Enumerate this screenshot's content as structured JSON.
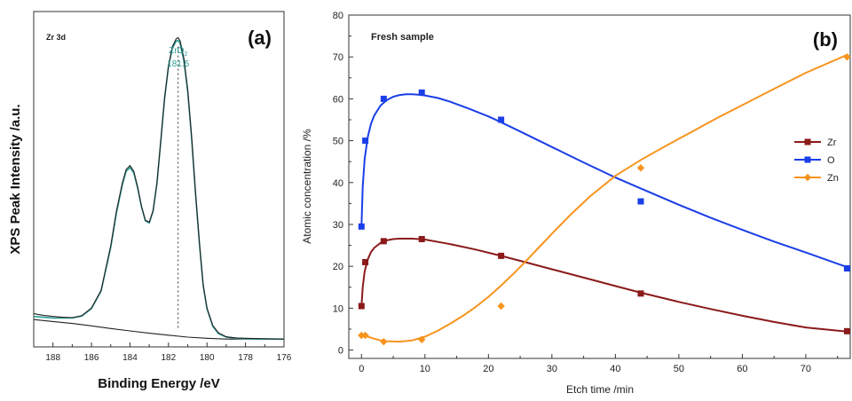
{
  "chart_data": [
    {
      "type": "line",
      "panel_label": "(a)",
      "title": "Zr 3d",
      "xlabel": "Binding Energy /eV",
      "ylabel": "XPS Peak Intensity /a.u.",
      "xlim": [
        189,
        176
      ],
      "x_reversed": true,
      "x_ticks": [
        188,
        186,
        184,
        182,
        180,
        178,
        176
      ],
      "y_ticks_shown": false,
      "annotation": {
        "species_main": "ZrO",
        "species_sub": "2",
        "value": "181.5",
        "x": 181.5,
        "color": "#2a9d94"
      },
      "series": [
        {
          "role": "measured",
          "color": "#222222",
          "x": [
            189,
            188.5,
            188,
            187.5,
            187,
            186.5,
            186,
            185.5,
            185,
            184.7,
            184.4,
            184.2,
            184,
            183.8,
            183.6,
            183.4,
            183.2,
            183,
            182.8,
            182.6,
            182.4,
            182.2,
            182,
            181.8,
            181.6,
            181.5,
            181.4,
            181.2,
            181,
            180.8,
            180.6,
            180.4,
            180.2,
            180,
            179.7,
            179.4,
            179,
            178.5,
            178,
            177,
            176
          ],
          "y": [
            8.5,
            8.1,
            7.8,
            7.6,
            7.5,
            8.0,
            10.0,
            14.5,
            26,
            35,
            42,
            45.5,
            46.5,
            45,
            41,
            36,
            32.5,
            32,
            35,
            42,
            53,
            64,
            72,
            77,
            79,
            79.3,
            78.5,
            74,
            66,
            54,
            40,
            27,
            16,
            10,
            5.5,
            3.6,
            2.6,
            2.3,
            2.2,
            2.1,
            2.0
          ]
        },
        {
          "role": "fit",
          "color": "#2a9d94",
          "x": [
            189,
            188.5,
            188,
            187.5,
            187,
            186.5,
            186,
            185.5,
            185,
            184.7,
            184.4,
            184.2,
            184,
            183.8,
            183.6,
            183.4,
            183.2,
            183,
            182.8,
            182.6,
            182.4,
            182.2,
            182,
            181.8,
            181.6,
            181.5,
            181.4,
            181.2,
            181,
            180.8,
            180.6,
            180.4,
            180.2,
            180,
            179.7,
            179.4,
            179,
            178.5,
            178,
            177,
            176
          ],
          "y": [
            7.8,
            7.6,
            7.4,
            7.4,
            7.4,
            7.9,
            9.8,
            14.3,
            25.5,
            34.5,
            41.5,
            45,
            46,
            44.6,
            40.7,
            35.8,
            32.3,
            31.8,
            34.8,
            41.8,
            52.8,
            63.8,
            71.8,
            76.6,
            78.4,
            78.6,
            77.8,
            73.4,
            65.5,
            53.5,
            39.6,
            26.7,
            15.8,
            9.8,
            5.3,
            3.4,
            2.5,
            2.2,
            2.1,
            2.0,
            2.0
          ]
        },
        {
          "role": "background",
          "color": "#222222",
          "x": [
            189,
            188,
            187,
            186,
            185,
            184,
            183,
            182,
            181,
            180,
            179,
            178,
            177,
            176
          ],
          "y": [
            7.0,
            6.5,
            6.0,
            5.4,
            4.7,
            4.1,
            3.5,
            3.0,
            2.5,
            2.2,
            2.0,
            2.0,
            2.0,
            2.0
          ]
        }
      ]
    },
    {
      "type": "line",
      "panel_label": "(b)",
      "title": "Fresh sample",
      "xlabel": "Etch time /min",
      "ylabel": "Atomic concentration /%",
      "xlim": [
        -2,
        77
      ],
      "ylim": [
        -2,
        80
      ],
      "x_ticks": [
        0,
        10,
        20,
        30,
        40,
        50,
        60,
        70
      ],
      "y_ticks": [
        0,
        10,
        20,
        30,
        40,
        50,
        60,
        70,
        80
      ],
      "legend_position": "right",
      "series": [
        {
          "name": "Zr",
          "color": "#8b1a1a",
          "marker": "square",
          "points": {
            "x": [
              0,
              0.6,
              3.5,
              9.5,
              22,
              44,
              76.5
            ],
            "y": [
              10.5,
              21,
              26,
              26.5,
              22.5,
              13.5,
              4.5
            ]
          },
          "fit": {
            "x": [
              0,
              0.2,
              0.5,
              1,
              1.5,
              2,
              3,
              4,
              5,
              6,
              8,
              10,
              14,
              18,
              22,
              26,
              30,
              35,
              40,
              44,
              50,
              55,
              60,
              65,
              70,
              76.5
            ],
            "y": [
              10.5,
              15,
              18.8,
              21.7,
              23.4,
              24.4,
              25.6,
              26.2,
              26.5,
              26.6,
              26.6,
              26.4,
              25.3,
              24,
              22.5,
              20.9,
              19.3,
              17.3,
              15.3,
              13.7,
              11.5,
              9.8,
              8.2,
              6.7,
              5.4,
              4.4
            ]
          }
        },
        {
          "name": "O",
          "color": "#1a3ee8",
          "marker": "square",
          "points": {
            "x": [
              0,
              0.6,
              3.5,
              9.5,
              22,
              44,
              76.5
            ],
            "y": [
              29.5,
              50,
              60,
              61.5,
              55,
              35.5,
              19.5
            ]
          },
          "fit": {
            "x": [
              0,
              0.2,
              0.5,
              1,
              1.5,
              2,
              3,
              4,
              5,
              6,
              7,
              8,
              9,
              10,
              12,
              14,
              17,
              20,
              22,
              25,
              30,
              35,
              40,
              44,
              50,
              55,
              60,
              65,
              70,
              76.5
            ],
            "y": [
              29.5,
              39,
              45.7,
              51,
              54,
              56,
              58.4,
              59.7,
              60.5,
              60.9,
              61.1,
              61.1,
              61,
              60.8,
              60.2,
              59.3,
              57.6,
              55.8,
              54.4,
              52.2,
              48.5,
              44.8,
              41.2,
              38.6,
              34.7,
              31.6,
              28.7,
              25.9,
              23.3,
              19.8
            ]
          }
        },
        {
          "name": "Zn",
          "color": "#f7941d",
          "marker": "diamond",
          "points": {
            "x": [
              0,
              0.6,
              3.5,
              9.5,
              22,
              44,
              76.5
            ],
            "y": [
              3.5,
              3.5,
              2,
              2.5,
              10.5,
              43.5,
              70
            ]
          },
          "fit": {
            "x": [
              0,
              1,
              2,
              3,
              4,
              6,
              8,
              10,
              12,
              14,
              16,
              18,
              20,
              22,
              24,
              26,
              28,
              30,
              33,
              36,
              40,
              44,
              48,
              52,
              56,
              60,
              65,
              70,
              76.5
            ],
            "y": [
              3.6,
              3.2,
              2.7,
              2.3,
              2.1,
              2.0,
              2.3,
              3.2,
              4.6,
              6.3,
              8.2,
              10.3,
              12.7,
              15.4,
              18.3,
              21.4,
              24.6,
              27.8,
              32.4,
              36.7,
              41.6,
              45.4,
              48.8,
              52.1,
              55.4,
              58.5,
              62.4,
              66.2,
              70.5
            ]
          }
        }
      ]
    }
  ]
}
